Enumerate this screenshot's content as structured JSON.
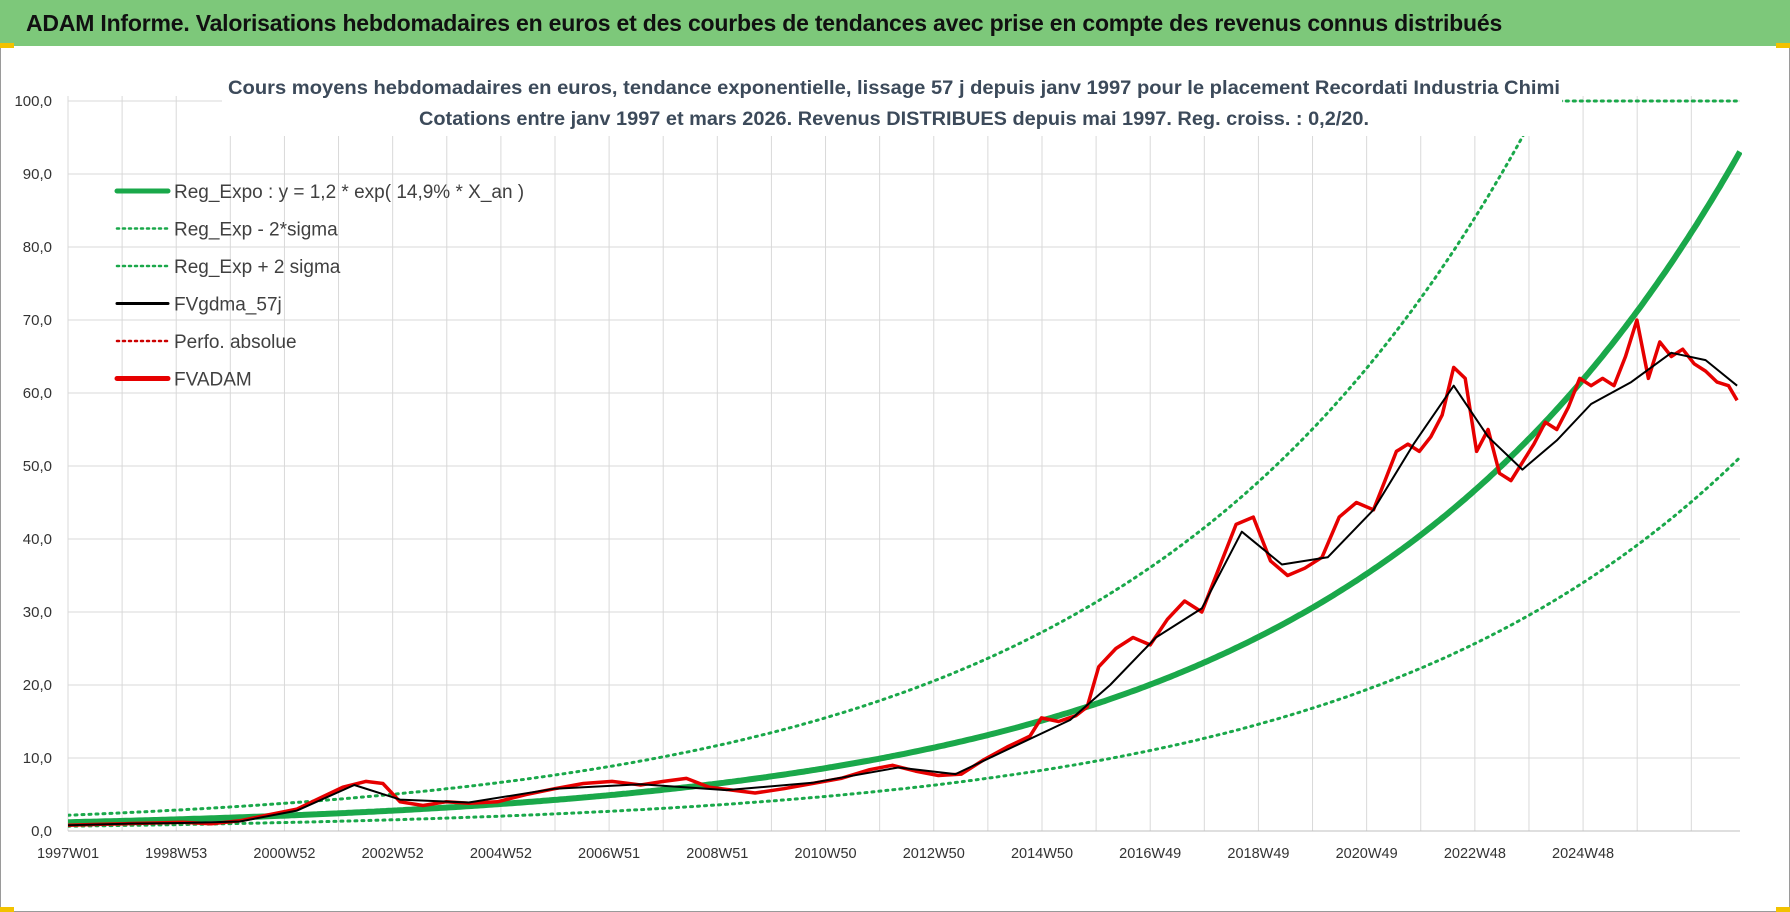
{
  "banner": {
    "title": "ADAM Informe. Valorisations hebdomadaires en euros et des courbes de tendances avec prise en compte des revenus connus distribués"
  },
  "colors": {
    "banner_bg": "#7dc87a",
    "reg_expo": "#1aa84a",
    "sigma": "#1aa84a",
    "fvgdma": "#000000",
    "perfo": "#cc0000",
    "fvadam": "#e60000",
    "grid": "#d9d9d9"
  },
  "chart_data": {
    "type": "line",
    "title_lines": [
      "Cours moyens hebdomadaires en euros, tendance exponentielle, lissage 57 j depuis janv 1997 pour le placement Recordati Industria Chimi",
      "Cotations entre janv 1997 et mars 2026. Revenus DISTRIBUES depuis mai 1997. Reg. croiss. : 0,2/20."
    ],
    "xlabel": "",
    "ylabel": "",
    "ylim": [
      0,
      100
    ],
    "y_ticks": [
      "0,0",
      "10,0",
      "20,0",
      "30,0",
      "40,0",
      "50,0",
      "60,0",
      "70,0",
      "80,0",
      "90,0",
      "100,0"
    ],
    "x_range_years": [
      1997.0,
      2026.2
    ],
    "x_tick_labels": [
      "1997W01",
      "1998W53",
      "2000W52",
      "2002W52",
      "2004W52",
      "2006W51",
      "2008W51",
      "2010W50",
      "2012W50",
      "2014W50",
      "2016W49",
      "2018W49",
      "2020W49",
      "2022W48",
      "2024W48"
    ],
    "grid": true,
    "legend_position": "top-left",
    "legend": [
      {
        "name": "Reg_Expo : y = 1,2 * exp( 14,9% *  X_an )",
        "style": "solid-thick",
        "color_key": "reg_expo"
      },
      {
        "name": "Reg_Exp - 2*sigma",
        "style": "dotted",
        "color_key": "sigma"
      },
      {
        "name": "Reg_Exp + 2 sigma",
        "style": "dotted",
        "color_key": "sigma"
      },
      {
        "name": "FVgdma_57j",
        "style": "solid",
        "color_key": "fvgdma"
      },
      {
        "name": "Perfo. absolue",
        "style": "dotted",
        "color_key": "perfo"
      },
      {
        "name": "FVADAM",
        "style": "solid-thick",
        "color_key": "fvadam"
      }
    ],
    "regression": {
      "a": 1.2,
      "b": 0.149,
      "sigma_factor_minus": 0.55,
      "sigma_factor_plus": 1.8
    },
    "series": [
      {
        "name": "FVADAM",
        "x": [
          1997.0,
          1997.5,
          1998.0,
          1998.5,
          1999.0,
          1999.5,
          2000.0,
          2000.5,
          2001.0,
          2001.4,
          2001.8,
          2002.2,
          2002.5,
          2002.8,
          2003.2,
          2003.6,
          2004.0,
          2004.5,
          2005.0,
          2005.5,
          2006.0,
          2006.5,
          2007.0,
          2007.4,
          2007.8,
          2008.2,
          2008.6,
          2009.0,
          2009.5,
          2010.0,
          2010.5,
          2011.0,
          2011.4,
          2011.8,
          2012.2,
          2012.6,
          2013.0,
          2013.4,
          2013.8,
          2014.0,
          2014.3,
          2014.6,
          2014.8,
          2015.0,
          2015.3,
          2015.6,
          2015.9,
          2016.2,
          2016.5,
          2016.8,
          2017.1,
          2017.4,
          2017.7,
          2018.0,
          2018.3,
          2018.6,
          2018.9,
          2019.2,
          2019.5,
          2019.8,
          2020.0,
          2020.2,
          2020.4,
          2020.6,
          2020.8,
          2021.0,
          2021.2,
          2021.4,
          2021.6,
          2021.8,
          2022.0,
          2022.2,
          2022.4,
          2022.6,
          2022.8,
          2023.0,
          2023.2,
          2023.4,
          2023.6,
          2023.8,
          2024.0,
          2024.2,
          2024.4,
          2024.6,
          2024.8,
          2025.0,
          2025.2,
          2025.4,
          2025.6,
          2025.8,
          2026.0,
          2026.15
        ],
        "values": [
          0.8,
          0.9,
          1.0,
          1.1,
          1.2,
          1.0,
          1.4,
          2.2,
          3.0,
          4.5,
          6.0,
          6.8,
          6.5,
          4.0,
          3.5,
          4.0,
          3.8,
          4.0,
          5.0,
          5.8,
          6.5,
          6.8,
          6.3,
          6.8,
          7.2,
          6.0,
          5.6,
          5.2,
          5.8,
          6.5,
          7.2,
          8.4,
          9.0,
          8.2,
          7.6,
          7.8,
          9.8,
          11.5,
          13.0,
          15.5,
          15.0,
          15.8,
          17.0,
          22.5,
          25.0,
          26.5,
          25.5,
          29.0,
          31.5,
          30.0,
          36.0,
          42.0,
          43.0,
          37.0,
          35.0,
          36.0,
          37.5,
          43.0,
          45.0,
          44.0,
          48.0,
          52.0,
          53.0,
          52.0,
          54.0,
          57.0,
          63.5,
          62.0,
          52.0,
          55.0,
          49.0,
          48.0,
          50.5,
          53.0,
          56.0,
          55.0,
          58.0,
          62.0,
          61.0,
          62.0,
          61.0,
          65.0,
          70.0,
          62.0,
          67.0,
          65.0,
          66.0,
          64.0,
          63.0,
          61.5,
          61.0,
          59.0
        ]
      },
      {
        "name": "FVgdma_57j",
        "x": [
          1997.0,
          1998.0,
          1999.0,
          2000.0,
          2001.0,
          2002.0,
          2002.8,
          2004.0,
          2005.5,
          2007.0,
          2008.5,
          2010.0,
          2011.5,
          2012.5,
          2013.5,
          2014.5,
          2015.2,
          2016.0,
          2016.8,
          2017.5,
          2018.2,
          2019.0,
          2019.8,
          2020.5,
          2021.2,
          2021.8,
          2022.4,
          2023.0,
          2023.6,
          2024.3,
          2025.0,
          2025.6,
          2026.15
        ],
        "values": [
          0.8,
          1.0,
          1.1,
          1.3,
          2.8,
          6.3,
          4.3,
          3.9,
          5.8,
          6.4,
          5.6,
          6.6,
          8.7,
          7.8,
          11.5,
          15.2,
          20.0,
          26.5,
          30.5,
          41.0,
          36.5,
          37.5,
          44.0,
          53.0,
          61.0,
          54.0,
          49.5,
          53.5,
          58.5,
          61.5,
          65.5,
          64.5,
          61.0
        ]
      }
    ]
  }
}
